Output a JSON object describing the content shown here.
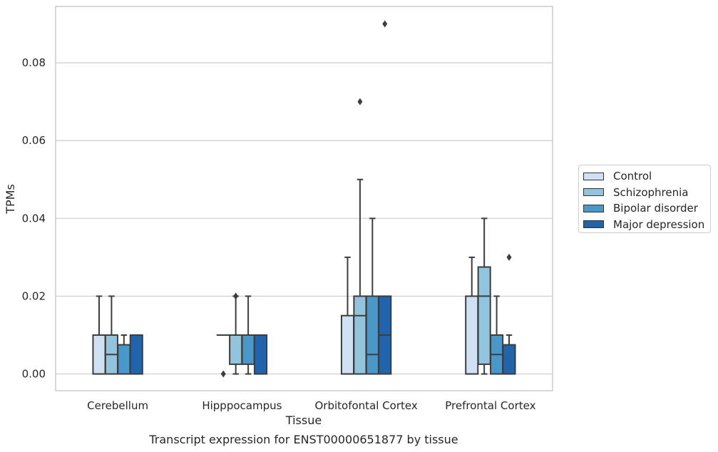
{
  "chart_data": {
    "type": "box",
    "title": "",
    "xlabel": "Tissue",
    "ylabel": "TPMs",
    "caption": "Transcript expression for ENST00000651877 by tissue",
    "ylim": [
      -0.0043,
      0.0945
    ],
    "yticks": [
      "0.00",
      "0.02",
      "0.04",
      "0.06",
      "0.08"
    ],
    "ytick_values": [
      0,
      0.02,
      0.04,
      0.06,
      0.08
    ],
    "grid": "horizontal",
    "legend_position": "right",
    "categories": [
      "Cerebellum",
      "Hipppocampus",
      "Orbitofontal Cortex",
      "Prefrontal Cortex"
    ],
    "series": [
      {
        "name": "Control",
        "color": "#cfe1f2",
        "boxes": [
          {
            "whislo": 0,
            "q1": 0,
            "med": 0,
            "q3": 0.01,
            "whishi": 0.02,
            "fliers": []
          },
          {
            "whislo": 0.01,
            "q1": 0.01,
            "med": 0.01,
            "q3": 0.01,
            "whishi": 0.01,
            "fliers": [
              0
            ]
          },
          {
            "whislo": 0,
            "q1": 0,
            "med": 0,
            "q3": 0.015,
            "whishi": 0.03,
            "fliers": []
          },
          {
            "whislo": 0,
            "q1": 0,
            "med": 0,
            "q3": 0.02,
            "whishi": 0.03,
            "fliers": []
          }
        ]
      },
      {
        "name": "Schizophrenia",
        "color": "#93c4de",
        "boxes": [
          {
            "whislo": 0,
            "q1": 0,
            "med": 0.005,
            "q3": 0.01,
            "whishi": 0.02,
            "fliers": []
          },
          {
            "whislo": 0,
            "q1": 0.0025,
            "med": 0.01,
            "q3": 0.01,
            "whishi": 0.02,
            "fliers": [
              0.02
            ]
          },
          {
            "whislo": 0,
            "q1": 0,
            "med": 0.015,
            "q3": 0.02,
            "whishi": 0.05,
            "fliers": [
              0.07
            ]
          },
          {
            "whislo": 0,
            "q1": 0.0025,
            "med": 0.02,
            "q3": 0.0275,
            "whishi": 0.04,
            "fliers": []
          }
        ]
      },
      {
        "name": "Bipolar disorder",
        "color": "#4a98c9",
        "boxes": [
          {
            "whislo": 0,
            "q1": 0,
            "med": 0,
            "q3": 0.0075,
            "whishi": 0.01,
            "fliers": []
          },
          {
            "whislo": 0,
            "q1": 0.0025,
            "med": 0.01,
            "q3": 0.01,
            "whishi": 0.02,
            "fliers": []
          },
          {
            "whislo": 0,
            "q1": 0,
            "med": 0.005,
            "q3": 0.02,
            "whishi": 0.04,
            "fliers": []
          },
          {
            "whislo": 0,
            "q1": 0,
            "med": 0.005,
            "q3": 0.01,
            "whishi": 0.02,
            "fliers": []
          }
        ]
      },
      {
        "name": "Major depression",
        "color": "#2164ab",
        "boxes": [
          {
            "whislo": 0,
            "q1": 0,
            "med": 0,
            "q3": 0.01,
            "whishi": 0.01,
            "fliers": []
          },
          {
            "whislo": 0,
            "q1": 0,
            "med": 0,
            "q3": 0.01,
            "whishi": 0.01,
            "fliers": []
          },
          {
            "whislo": 0,
            "q1": 0,
            "med": 0.01,
            "q3": 0.02,
            "whishi": 0.02,
            "fliers": [
              0.09
            ]
          },
          {
            "whislo": 0,
            "q1": 0,
            "med": 0,
            "q3": 0.0075,
            "whishi": 0.01,
            "fliers": [
              0.03
            ]
          }
        ]
      }
    ]
  }
}
